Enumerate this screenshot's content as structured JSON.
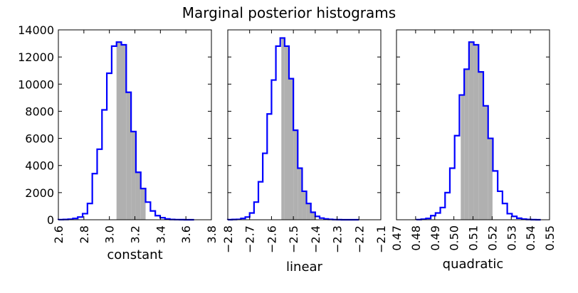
{
  "chart_data": {
    "title": "Marginal posterior histograms",
    "panels": [
      {
        "type": "histogram",
        "xlabel": "constant",
        "xlim": [
          2.6,
          3.8
        ],
        "ylim": [
          0,
          14000
        ],
        "xticks": [
          2.6,
          2.8,
          3.0,
          3.2,
          3.4,
          3.6,
          3.8
        ],
        "xtick_labels": [
          "2.6",
          "2.8",
          "3.0",
          "3.2",
          "3.4",
          "3.6",
          "3.8"
        ],
        "yticks": [
          0,
          2000,
          4000,
          6000,
          8000,
          10000,
          12000,
          14000
        ],
        "ytick_labels": [
          "0",
          "2000",
          "4000",
          "6000",
          "8000",
          "10000",
          "12000",
          "14000"
        ],
        "bin_edges": [
          2.6,
          2.638,
          2.676,
          2.714,
          2.752,
          2.79,
          2.828,
          2.866,
          2.904,
          2.942,
          2.98,
          3.018,
          3.056,
          3.094,
          3.132,
          3.17,
          3.208,
          3.246,
          3.284,
          3.322,
          3.36,
          3.398,
          3.436,
          3.474,
          3.512,
          3.55,
          3.588,
          3.626,
          3.664
        ],
        "counts": [
          10,
          20,
          40,
          100,
          200,
          450,
          1200,
          3400,
          5200,
          8100,
          10800,
          12800,
          13100,
          12900,
          9400,
          6500,
          3500,
          2300,
          1300,
          650,
          300,
          150,
          60,
          20,
          10,
          5,
          0,
          0
        ],
        "shade_range": [
          3.056,
          3.284
        ],
        "line_color": "#0000ff",
        "fill_color": "#b0b0b0"
      },
      {
        "type": "histogram",
        "xlabel": "linear",
        "xlim": [
          -2.8,
          -2.1
        ],
        "ylim": [
          0,
          14000
        ],
        "xticks": [
          -2.8,
          -2.7,
          -2.6,
          -2.5,
          -2.4,
          -2.3,
          -2.2,
          -2.1
        ],
        "xtick_labels": [
          "−2.8",
          "−2.7",
          "−2.6",
          "−2.5",
          "−2.4",
          "−2.3",
          "−2.2",
          "−2.1"
        ],
        "yticks": [
          0,
          2000,
          4000,
          6000,
          8000,
          10000,
          12000,
          14000
        ],
        "bin_edges": [
          -2.8,
          -2.78,
          -2.76,
          -2.74,
          -2.72,
          -2.7,
          -2.68,
          -2.66,
          -2.64,
          -2.62,
          -2.6,
          -2.58,
          -2.56,
          -2.54,
          -2.52,
          -2.5,
          -2.48,
          -2.46,
          -2.44,
          -2.42,
          -2.4,
          -2.38,
          -2.36,
          -2.34,
          -2.32,
          -2.3,
          -2.28,
          -2.26,
          -2.24,
          -2.22,
          -2.2
        ],
        "counts": [
          5,
          20,
          30,
          100,
          200,
          500,
          1300,
          2800,
          4900,
          7800,
          10300,
          12800,
          13400,
          12800,
          10400,
          6600,
          3800,
          2100,
          1200,
          550,
          250,
          120,
          60,
          25,
          10,
          5,
          0,
          0,
          0,
          0
        ],
        "shade_range": [
          -2.555,
          -2.398
        ],
        "line_color": "#0000ff",
        "fill_color": "#b0b0b0"
      },
      {
        "type": "histogram",
        "xlabel": "quadratic",
        "xlim": [
          0.47,
          0.55
        ],
        "ylim": [
          0,
          14000
        ],
        "xticks": [
          0.47,
          0.48,
          0.49,
          0.5,
          0.51,
          0.52,
          0.53,
          0.54,
          0.55
        ],
        "xtick_labels": [
          "0.47",
          "0.48",
          "0.49",
          "0.50",
          "0.51",
          "0.52",
          "0.53",
          "0.54",
          "0.55"
        ],
        "yticks": [
          0,
          2000,
          4000,
          6000,
          8000,
          10000,
          12000,
          14000
        ],
        "bin_edges": [
          0.4804,
          0.4829,
          0.4854,
          0.4879,
          0.4904,
          0.4929,
          0.4954,
          0.4979,
          0.5004,
          0.5029,
          0.5054,
          0.5079,
          0.5104,
          0.5129,
          0.5154,
          0.5179,
          0.5204,
          0.5229,
          0.5254,
          0.5279,
          0.5304,
          0.5329,
          0.5354,
          0.5379,
          0.5404,
          0.5429,
          0.5454
        ],
        "counts": [
          10,
          40,
          100,
          300,
          500,
          900,
          2000,
          3800,
          6200,
          9200,
          11100,
          13100,
          12900,
          10900,
          8400,
          6000,
          3600,
          2100,
          1200,
          450,
          250,
          110,
          50,
          20,
          5,
          0
        ],
        "shade_range": [
          0.5036,
          0.5202
        ],
        "line_color": "#0000ff",
        "fill_color": "#b0b0b0"
      }
    ]
  }
}
